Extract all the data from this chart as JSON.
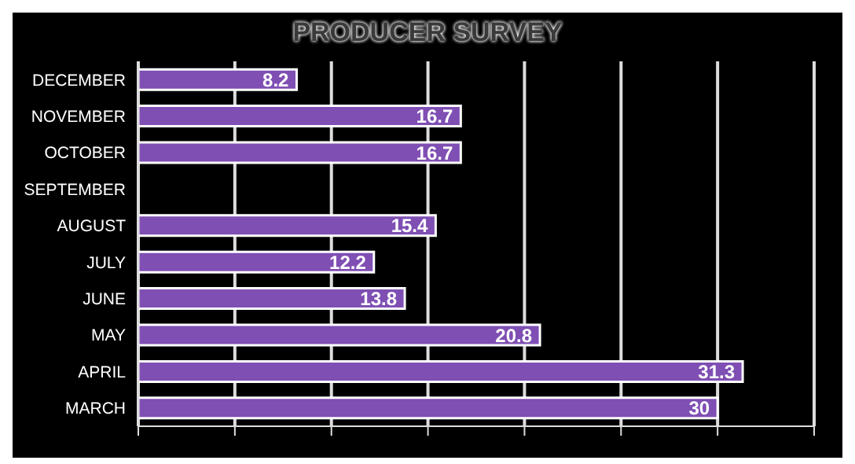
{
  "chart_data": {
    "type": "bar",
    "orientation": "horizontal",
    "title": "PRODUCER SURVEY",
    "categories": [
      "DECEMBER",
      "NOVEMBER",
      "OCTOBER",
      "SEPTEMBER",
      "AUGUST",
      "JULY",
      "JUNE",
      "MAY",
      "APRIL",
      "MARCH"
    ],
    "values": [
      8.2,
      16.7,
      16.7,
      null,
      15.4,
      12.2,
      13.8,
      20.8,
      31.3,
      30
    ],
    "color": "#7f4fb3",
    "data_labels": true,
    "xlim": [
      0,
      35
    ],
    "xticks": [
      {
        "value": 0,
        "label": null
      },
      {
        "value": 5,
        "label": null
      },
      {
        "value": 10,
        "label": null
      },
      {
        "value": 15,
        "label": null
      },
      {
        "value": 20,
        "label": null
      },
      {
        "value": 25,
        "label": null
      },
      {
        "value": 30,
        "label": null
      },
      {
        "value": 35,
        "label": null
      }
    ],
    "grid": "x",
    "tick_labels": "y"
  }
}
